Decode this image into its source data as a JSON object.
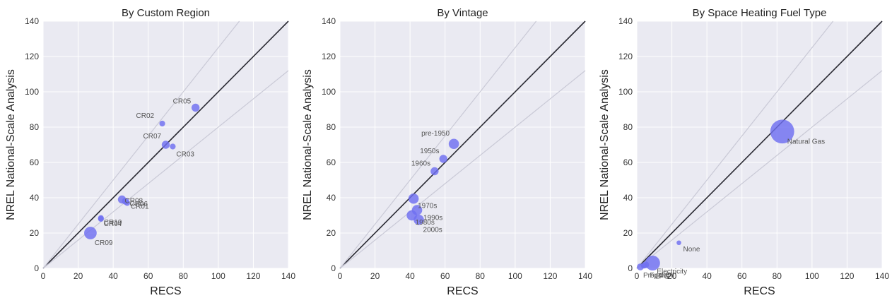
{
  "chart_data": [
    {
      "type": "scatter",
      "title": "By Custom Region",
      "xlabel": "RECS",
      "ylabel": "NREL National-Scale Analysis",
      "xlim": [
        0,
        140
      ],
      "ylim": [
        0,
        140
      ],
      "xticks": [
        "0",
        "20",
        "40",
        "60",
        "80",
        "100",
        "120",
        "140"
      ],
      "yticks": [
        "0",
        "20",
        "40",
        "60",
        "80",
        "100",
        "120",
        "140"
      ],
      "grid": true,
      "reference_lines": [
        {
          "slope": 1
        },
        {
          "slope": 0.8
        },
        {
          "slope": 1.25
        }
      ],
      "point_color": "#6f6ff0",
      "points": [
        {
          "label": "CR05",
          "x": 87,
          "y": 91,
          "size": 2
        },
        {
          "label": "CR02",
          "x": 68,
          "y": 82,
          "size": 1
        },
        {
          "label": "CR07",
          "x": 70,
          "y": 70,
          "size": 2
        },
        {
          "label": "CR03",
          "x": 74,
          "y": 69,
          "size": 1
        },
        {
          "label": "CR08",
          "x": 45,
          "y": 39,
          "size": 2
        },
        {
          "label": "CR06",
          "x": 47,
          "y": 38,
          "size": 1.5
        },
        {
          "label": "CR01",
          "x": 48,
          "y": 37,
          "size": 1
        },
        {
          "label": "CR10",
          "x": 33,
          "y": 28.5,
          "size": 1
        },
        {
          "label": "CR04",
          "x": 33,
          "y": 28,
          "size": 1
        },
        {
          "label": "CR09",
          "x": 27,
          "y": 20,
          "size": 4
        }
      ]
    },
    {
      "type": "scatter",
      "title": "By Vintage",
      "xlabel": "RECS",
      "ylabel": "NREL National-Scale Analysis",
      "xlim": [
        0,
        140
      ],
      "ylim": [
        0,
        140
      ],
      "xticks": [
        "0",
        "20",
        "40",
        "60",
        "80",
        "100",
        "120",
        "140"
      ],
      "yticks": [
        "0",
        "20",
        "40",
        "60",
        "80",
        "100",
        "120",
        "140"
      ],
      "grid": true,
      "reference_lines": [
        {
          "slope": 1
        },
        {
          "slope": 0.8
        },
        {
          "slope": 1.25
        }
      ],
      "point_color": "#6f6ff0",
      "points": [
        {
          "label": "pre-1950",
          "x": 65,
          "y": 70.5,
          "size": 3
        },
        {
          "label": "1950s",
          "x": 59,
          "y": 62,
          "size": 2
        },
        {
          "label": "1960s",
          "x": 54,
          "y": 55,
          "size": 2
        },
        {
          "label": "1970s",
          "x": 42,
          "y": 39.5,
          "size": 3
        },
        {
          "label": "1990s",
          "x": 44,
          "y": 33,
          "size": 3
        },
        {
          "label": "1980s",
          "x": 41,
          "y": 30,
          "size": 3
        },
        {
          "label": "2000s",
          "x": 45,
          "y": 27.5,
          "size": 3
        }
      ]
    },
    {
      "type": "scatter",
      "title": "By Space Heating Fuel Type",
      "xlabel": "RECS",
      "ylabel": "NREL National-Scale Analysis",
      "xlim": [
        0,
        140
      ],
      "ylim": [
        0,
        140
      ],
      "xticks": [
        "0",
        "20",
        "40",
        "60",
        "80",
        "100",
        "120",
        "140"
      ],
      "yticks": [
        "0",
        "20",
        "40",
        "60",
        "80",
        "100",
        "120",
        "140"
      ],
      "grid": true,
      "reference_lines": [
        {
          "slope": 1
        },
        {
          "slope": 0.8
        },
        {
          "slope": 1.25
        }
      ],
      "point_color": "#6f6ff0",
      "points": [
        {
          "label": "Natural Gas",
          "x": 83,
          "y": 77.5,
          "size": 9
        },
        {
          "label": "None",
          "x": 24,
          "y": 14.5,
          "size": 0.5
        },
        {
          "label": "Electricity",
          "x": 9,
          "y": 3,
          "size": 5
        },
        {
          "label": "Fuel Oil",
          "x": 5,
          "y": 2,
          "size": 1.5
        },
        {
          "label": "LPG",
          "x": 4,
          "y": 1.5,
          "size": 1
        },
        {
          "label": "Propane",
          "x": 2,
          "y": 0.8,
          "size": 1.5
        }
      ]
    }
  ]
}
